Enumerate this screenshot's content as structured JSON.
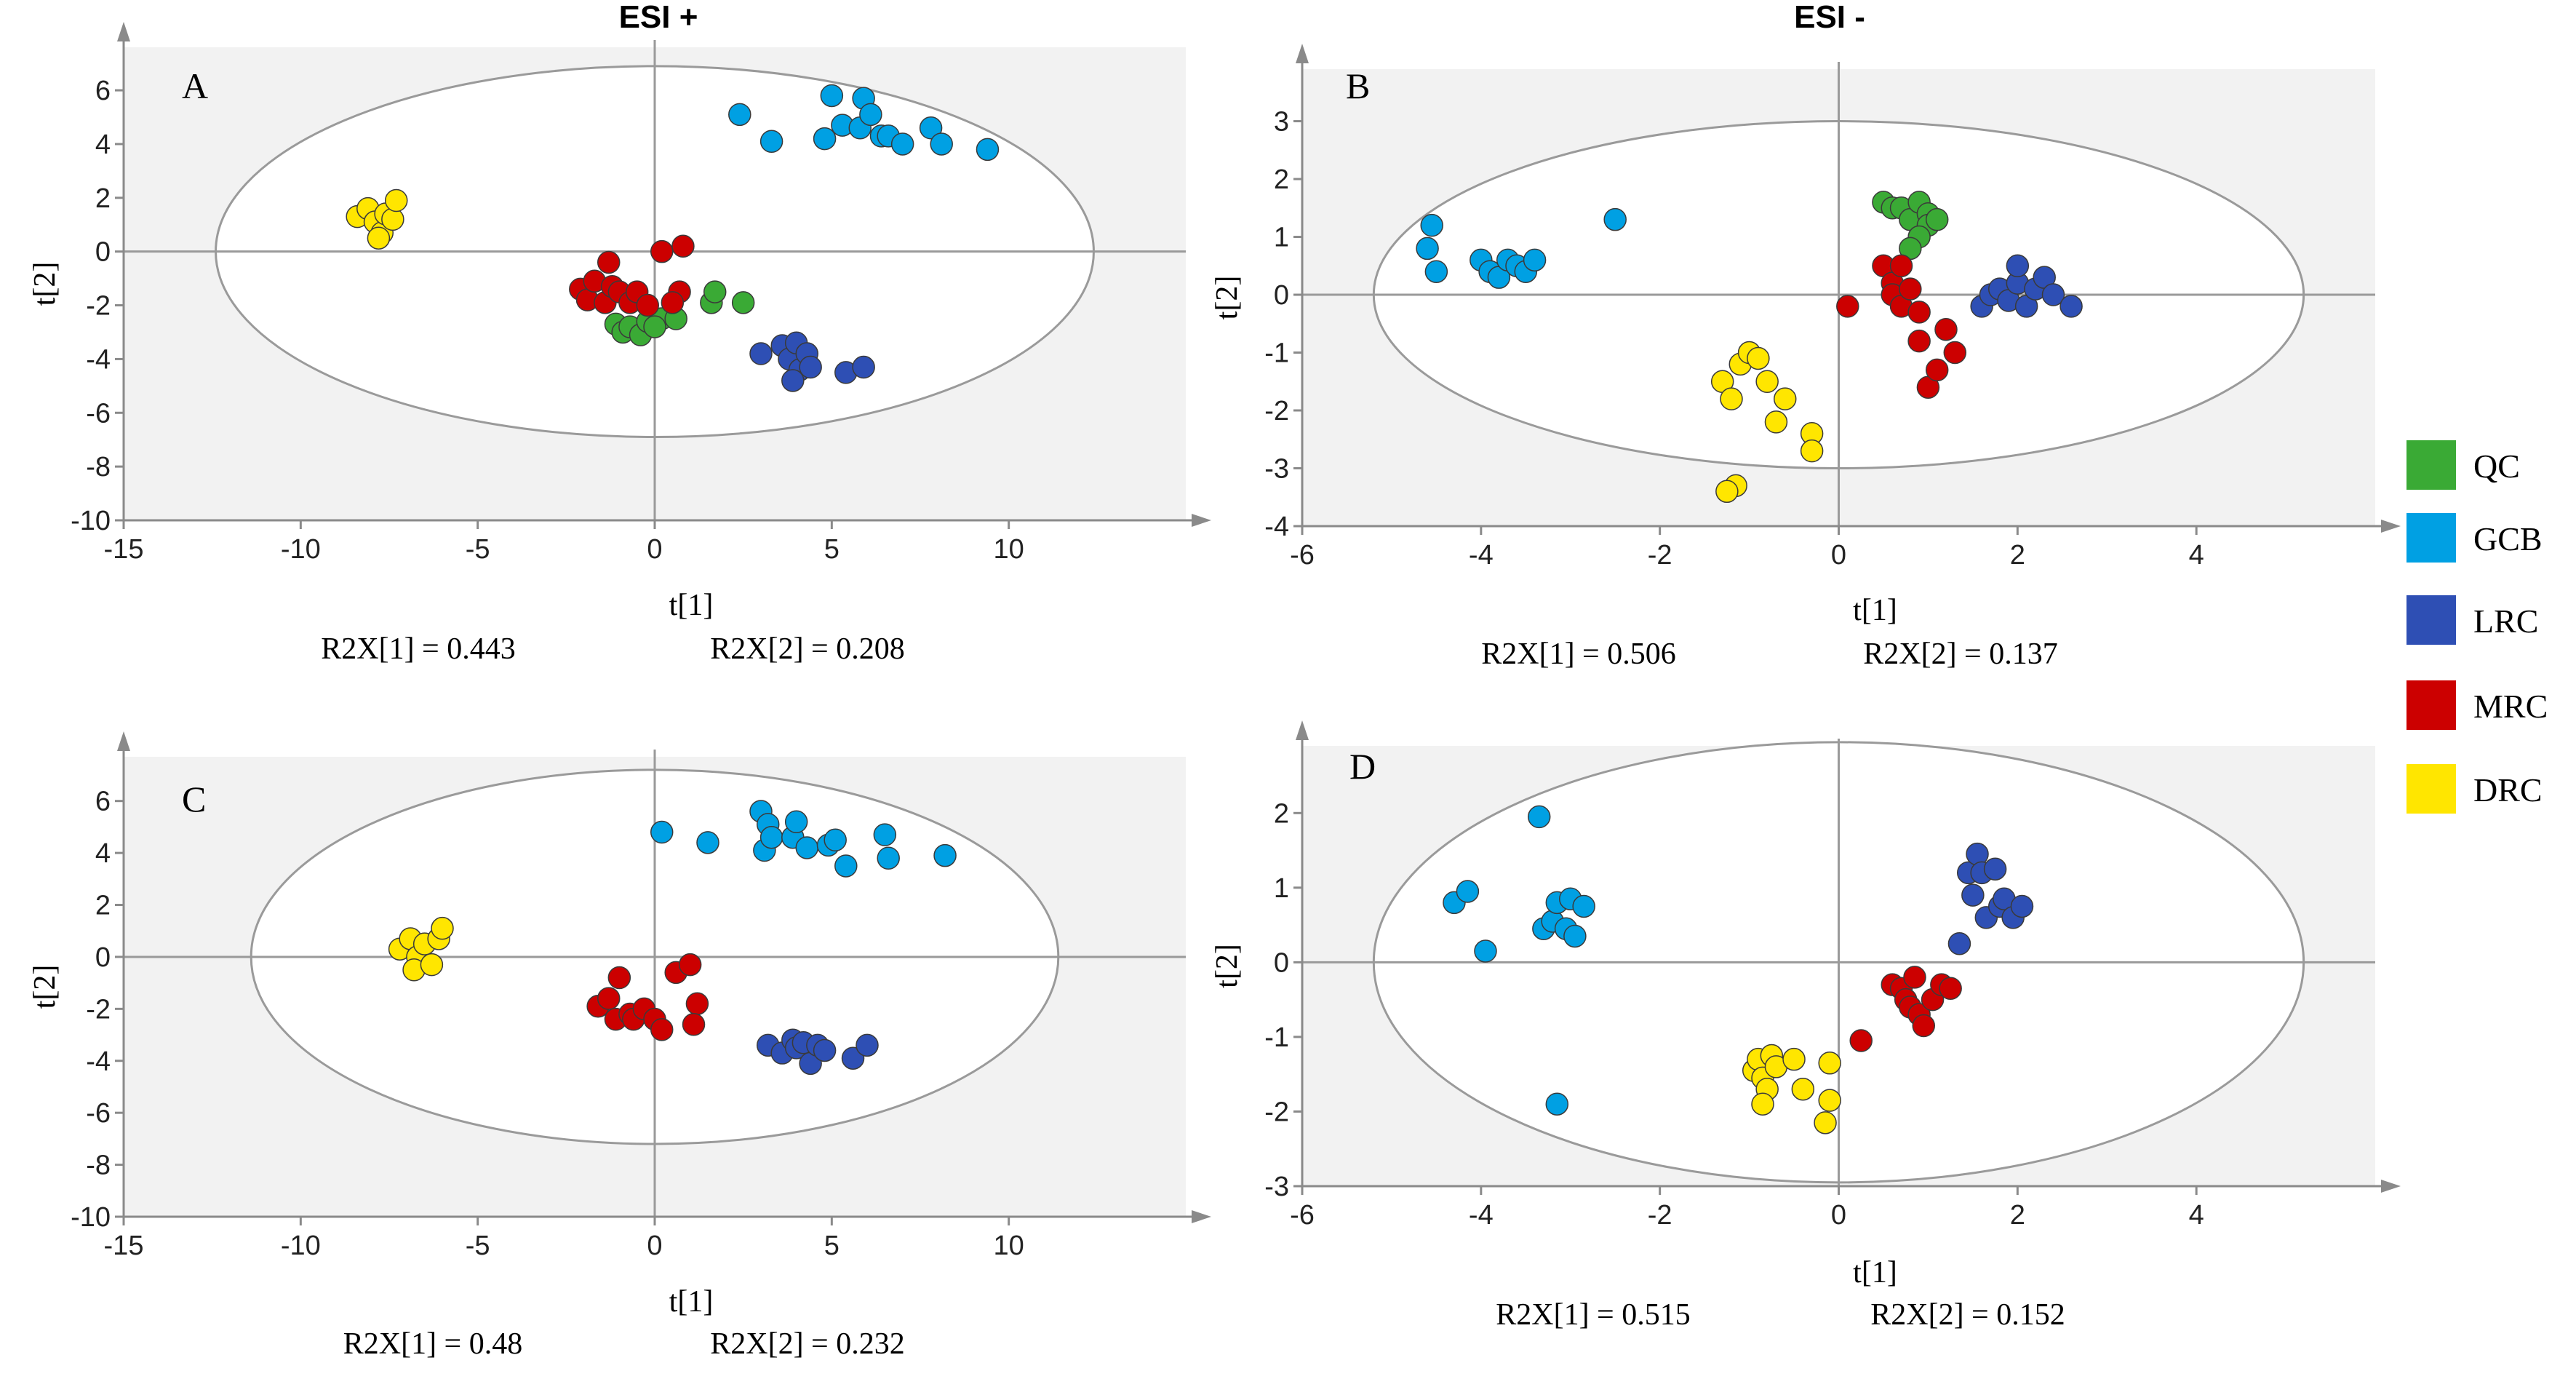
{
  "column_titles": [
    "ESI +",
    "ESI -"
  ],
  "legend": [
    {
      "label": "QC",
      "color": "#3aaa35"
    },
    {
      "label": "GCB",
      "color": "#00a0e3"
    },
    {
      "label": "LRC",
      "color": "#2e4fb4"
    },
    {
      "label": "MRC",
      "color": "#cc0000"
    },
    {
      "label": "DRC",
      "color": "#ffe600"
    }
  ],
  "chart_data": [
    {
      "type": "scatter",
      "panel": "A",
      "xlabel": "t[1]",
      "ylabel": "t[2]",
      "xlim": [
        -15,
        15
      ],
      "ylim": [
        -10,
        7.6
      ],
      "xticks": [
        -15,
        -10,
        -5,
        0,
        5,
        10
      ],
      "yticks": [
        -10,
        -8,
        -6,
        -4,
        -2,
        0,
        2,
        4,
        6
      ],
      "ellipse": {
        "rx": 12.4,
        "ry": 6.9
      },
      "r2x_labels": [
        "R2X[1] = 0.443",
        "R2X[2] = 0.208"
      ],
      "series": [
        {
          "name": "QC",
          "points": [
            [
              -1.1,
              -2.7
            ],
            [
              -0.9,
              -3.0
            ],
            [
              -0.7,
              -2.8
            ],
            [
              -0.4,
              -3.1
            ],
            [
              -0.2,
              -2.6
            ],
            [
              0.2,
              -2.5
            ],
            [
              0.6,
              -2.5
            ],
            [
              1.6,
              -1.9
            ],
            [
              1.7,
              -1.5
            ],
            [
              2.5,
              -1.9
            ],
            [
              0.0,
              -2.8
            ]
          ]
        },
        {
          "name": "GCB",
          "points": [
            [
              2.4,
              5.1
            ],
            [
              3.3,
              4.1
            ],
            [
              4.8,
              4.2
            ],
            [
              5.0,
              5.8
            ],
            [
              5.3,
              4.7
            ],
            [
              5.8,
              4.6
            ],
            [
              5.9,
              5.7
            ],
            [
              6.1,
              5.1
            ],
            [
              6.4,
              4.3
            ],
            [
              6.6,
              4.3
            ],
            [
              7.0,
              4.0
            ],
            [
              7.8,
              4.6
            ],
            [
              8.1,
              4.0
            ],
            [
              9.4,
              3.8
            ]
          ]
        },
        {
          "name": "LRC",
          "points": [
            [
              3.0,
              -3.8
            ],
            [
              3.6,
              -3.5
            ],
            [
              3.8,
              -4.0
            ],
            [
              4.0,
              -3.4
            ],
            [
              4.1,
              -4.4
            ],
            [
              4.3,
              -3.8
            ],
            [
              3.9,
              -4.8
            ],
            [
              4.4,
              -4.3
            ],
            [
              5.4,
              -4.5
            ],
            [
              5.9,
              -4.3
            ]
          ]
        },
        {
          "name": "MRC",
          "points": [
            [
              -2.1,
              -1.4
            ],
            [
              -1.9,
              -1.8
            ],
            [
              -1.7,
              -1.1
            ],
            [
              -1.4,
              -1.9
            ],
            [
              -1.2,
              -1.3
            ],
            [
              -1.3,
              -0.4
            ],
            [
              -1.0,
              -1.5
            ],
            [
              -0.7,
              -1.9
            ],
            [
              -0.5,
              -1.5
            ],
            [
              0.2,
              0.0
            ],
            [
              0.8,
              0.2
            ],
            [
              0.7,
              -1.5
            ],
            [
              0.5,
              -1.9
            ],
            [
              -0.2,
              -2.0
            ]
          ]
        },
        {
          "name": "DRC",
          "points": [
            [
              -8.4,
              1.3
            ],
            [
              -8.1,
              1.6
            ],
            [
              -7.9,
              1.1
            ],
            [
              -7.7,
              0.7
            ],
            [
              -7.6,
              1.4
            ],
            [
              -7.4,
              1.2
            ],
            [
              -7.3,
              1.9
            ],
            [
              -7.8,
              0.5
            ]
          ]
        }
      ]
    },
    {
      "type": "scatter",
      "panel": "B",
      "xlabel": "t[1]",
      "ylabel": "t[2]",
      "xlim": [
        -6,
        6
      ],
      "ylim": [
        -4,
        3.9
      ],
      "xticks": [
        -6,
        -4,
        -2,
        0,
        2,
        4
      ],
      "yticks": [
        -4,
        -3,
        -2,
        -1,
        0,
        1,
        2,
        3
      ],
      "ellipse": {
        "rx": 5.2,
        "ry": 3.0
      },
      "r2x_labels": [
        "R2X[1] = 0.506",
        "R2X[2] = 0.137"
      ],
      "series": [
        {
          "name": "QC",
          "points": [
            [
              0.5,
              1.6
            ],
            [
              0.6,
              1.5
            ],
            [
              0.7,
              1.5
            ],
            [
              0.8,
              1.3
            ],
            [
              0.9,
              1.6
            ],
            [
              1.0,
              1.4
            ],
            [
              1.0,
              1.2
            ],
            [
              1.1,
              1.3
            ],
            [
              0.9,
              1.0
            ],
            [
              0.8,
              0.8
            ]
          ]
        },
        {
          "name": "GCB",
          "points": [
            [
              -4.6,
              0.8
            ],
            [
              -4.55,
              1.2
            ],
            [
              -4.5,
              0.4
            ],
            [
              -4.0,
              0.6
            ],
            [
              -3.9,
              0.4
            ],
            [
              -3.8,
              0.3
            ],
            [
              -3.7,
              0.6
            ],
            [
              -3.6,
              0.5
            ],
            [
              -3.5,
              0.4
            ],
            [
              -3.4,
              0.6
            ],
            [
              -2.5,
              1.3
            ]
          ]
        },
        {
          "name": "LRC",
          "points": [
            [
              1.6,
              -0.2
            ],
            [
              1.7,
              0.0
            ],
            [
              1.8,
              0.1
            ],
            [
              1.9,
              -0.1
            ],
            [
              2.0,
              0.2
            ],
            [
              2.0,
              0.5
            ],
            [
              2.1,
              -0.2
            ],
            [
              2.2,
              0.1
            ],
            [
              2.3,
              0.3
            ],
            [
              2.4,
              0.0
            ],
            [
              2.6,
              -0.2
            ]
          ]
        },
        {
          "name": "MRC",
          "points": [
            [
              0.1,
              -0.2
            ],
            [
              0.5,
              0.5
            ],
            [
              0.6,
              0.2
            ],
            [
              0.6,
              0.0
            ],
            [
              0.7,
              -0.2
            ],
            [
              0.7,
              0.5
            ],
            [
              0.8,
              0.1
            ],
            [
              0.9,
              -0.3
            ],
            [
              0.9,
              -0.8
            ],
            [
              1.0,
              -1.6
            ],
            [
              1.1,
              -1.3
            ],
            [
              1.2,
              -0.6
            ],
            [
              1.3,
              -1.0
            ]
          ]
        },
        {
          "name": "DRC",
          "points": [
            [
              -1.3,
              -1.5
            ],
            [
              -1.2,
              -1.8
            ],
            [
              -1.1,
              -1.2
            ],
            [
              -1.0,
              -1.0
            ],
            [
              -0.9,
              -1.1
            ],
            [
              -0.8,
              -1.5
            ],
            [
              -0.6,
              -1.8
            ],
            [
              -0.3,
              -2.4
            ],
            [
              -0.3,
              -2.7
            ],
            [
              -1.15,
              -3.3
            ],
            [
              -1.25,
              -3.4
            ],
            [
              -0.7,
              -2.2
            ]
          ]
        }
      ]
    },
    {
      "type": "scatter",
      "panel": "C",
      "xlabel": "t[1]",
      "ylabel": "t[2]",
      "xlim": [
        -15,
        15
      ],
      "ylim": [
        -10,
        7.7
      ],
      "xticks": [
        -15,
        -10,
        -5,
        0,
        5,
        10
      ],
      "yticks": [
        -10,
        -8,
        -6,
        -4,
        -2,
        0,
        2,
        4,
        6
      ],
      "ellipse": {
        "rx": 11.4,
        "ry": 7.2
      },
      "r2x_labels": [
        "R2X[1] = 0.48",
        "R2X[2] = 0.232"
      ],
      "series": [
        {
          "name": "GCB",
          "points": [
            [
              0.2,
              4.8
            ],
            [
              1.5,
              4.4
            ],
            [
              3.0,
              5.6
            ],
            [
              3.1,
              4.1
            ],
            [
              3.2,
              5.1
            ],
            [
              3.3,
              4.6
            ],
            [
              3.9,
              4.6
            ],
            [
              4.0,
              5.2
            ],
            [
              4.3,
              4.2
            ],
            [
              4.9,
              4.3
            ],
            [
              5.1,
              4.5
            ],
            [
              5.4,
              3.5
            ],
            [
              6.5,
              4.7
            ],
            [
              6.6,
              3.8
            ],
            [
              8.2,
              3.9
            ]
          ]
        },
        {
          "name": "LRC",
          "points": [
            [
              3.2,
              -3.4
            ],
            [
              3.6,
              -3.7
            ],
            [
              3.9,
              -3.2
            ],
            [
              4.0,
              -3.5
            ],
            [
              4.2,
              -3.3
            ],
            [
              4.4,
              -4.1
            ],
            [
              4.6,
              -3.4
            ],
            [
              4.8,
              -3.6
            ],
            [
              5.6,
              -3.9
            ],
            [
              6.0,
              -3.4
            ]
          ]
        },
        {
          "name": "MRC",
          "points": [
            [
              -1.6,
              -1.9
            ],
            [
              -1.3,
              -1.6
            ],
            [
              -1.1,
              -2.4
            ],
            [
              -1.0,
              -0.8
            ],
            [
              -0.7,
              -2.2
            ],
            [
              -0.6,
              -2.4
            ],
            [
              -0.3,
              -2.0
            ],
            [
              0.0,
              -2.4
            ],
            [
              0.2,
              -2.8
            ],
            [
              0.6,
              -0.6
            ],
            [
              1.0,
              -0.3
            ],
            [
              1.2,
              -1.8
            ],
            [
              1.1,
              -2.6
            ]
          ]
        },
        {
          "name": "DRC",
          "points": [
            [
              -7.2,
              0.3
            ],
            [
              -6.9,
              0.7
            ],
            [
              -6.7,
              0.0
            ],
            [
              -6.8,
              -0.5
            ],
            [
              -6.5,
              0.5
            ],
            [
              -6.3,
              -0.3
            ],
            [
              -6.1,
              0.7
            ],
            [
              -6.0,
              1.1
            ]
          ]
        }
      ]
    },
    {
      "type": "scatter",
      "panel": "D",
      "xlabel": "t[1]",
      "ylabel": "t[2]",
      "xlim": [
        -6,
        6
      ],
      "ylim": [
        -3,
        2.9
      ],
      "xticks": [
        -6,
        -4,
        -2,
        0,
        2,
        4
      ],
      "yticks": [
        -3,
        -2,
        -1,
        0,
        1,
        2
      ],
      "ellipse": {
        "rx": 5.2,
        "ry": 2.95
      },
      "r2x_labels": [
        "R2X[1] = 0.515",
        "R2X[2] = 0.152"
      ],
      "series": [
        {
          "name": "GCB",
          "points": [
            [
              -4.3,
              0.8
            ],
            [
              -4.15,
              0.95
            ],
            [
              -3.95,
              0.15
            ],
            [
              -3.35,
              1.95
            ],
            [
              -3.3,
              0.45
            ],
            [
              -3.2,
              0.55
            ],
            [
              -3.15,
              0.8
            ],
            [
              -3.05,
              0.45
            ],
            [
              -3.0,
              0.85
            ],
            [
              -2.95,
              0.35
            ],
            [
              -2.85,
              0.75
            ],
            [
              -3.15,
              -1.9
            ]
          ]
        },
        {
          "name": "LRC",
          "points": [
            [
              1.35,
              0.25
            ],
            [
              1.45,
              1.2
            ],
            [
              1.5,
              0.9
            ],
            [
              1.55,
              1.45
            ],
            [
              1.6,
              1.2
            ],
            [
              1.65,
              0.6
            ],
            [
              1.75,
              1.25
            ],
            [
              1.8,
              0.75
            ],
            [
              1.85,
              0.85
            ],
            [
              1.95,
              0.6
            ],
            [
              2.05,
              0.75
            ]
          ]
        },
        {
          "name": "MRC",
          "points": [
            [
              0.25,
              -1.05
            ],
            [
              0.6,
              -0.3
            ],
            [
              0.7,
              -0.35
            ],
            [
              0.75,
              -0.5
            ],
            [
              0.8,
              -0.6
            ],
            [
              0.85,
              -0.2
            ],
            [
              0.9,
              -0.7
            ],
            [
              0.95,
              -0.85
            ],
            [
              1.05,
              -0.5
            ],
            [
              1.15,
              -0.3
            ],
            [
              1.25,
              -0.35
            ]
          ]
        },
        {
          "name": "DRC",
          "points": [
            [
              -0.95,
              -1.45
            ],
            [
              -0.9,
              -1.3
            ],
            [
              -0.85,
              -1.55
            ],
            [
              -0.8,
              -1.7
            ],
            [
              -0.75,
              -1.25
            ],
            [
              -0.7,
              -1.4
            ],
            [
              -0.5,
              -1.3
            ],
            [
              -0.4,
              -1.7
            ],
            [
              -0.1,
              -1.35
            ],
            [
              -0.1,
              -1.85
            ],
            [
              -0.15,
              -2.15
            ],
            [
              -0.85,
              -1.9
            ]
          ]
        }
      ]
    }
  ]
}
